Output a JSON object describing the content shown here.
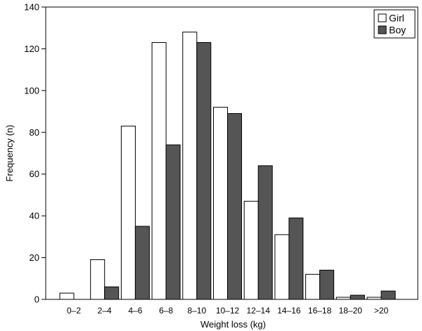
{
  "chart_data": {
    "type": "bar",
    "categories": [
      "0–2",
      "2–4",
      "4–6",
      "6–8",
      "8–10",
      "10–12",
      "12–14",
      "14–16",
      "16–18",
      "18–20",
      ">20"
    ],
    "series": [
      {
        "name": "Girl",
        "values": [
          3,
          19,
          83,
          123,
          128,
          92,
          47,
          31,
          12,
          1,
          1
        ],
        "color": "#ffffff"
      },
      {
        "name": "Boy",
        "values": [
          0,
          6,
          35,
          74,
          123,
          89,
          64,
          39,
          14,
          2,
          4
        ],
        "color": "#555555"
      }
    ],
    "xlabel": "Weight loss (kg)",
    "ylabel": "Frequency (n)",
    "ylim": [
      0,
      140
    ],
    "yticks": [
      0,
      20,
      40,
      60,
      80,
      100,
      120,
      140
    ],
    "grid": false,
    "legend_position": "top-right"
  }
}
